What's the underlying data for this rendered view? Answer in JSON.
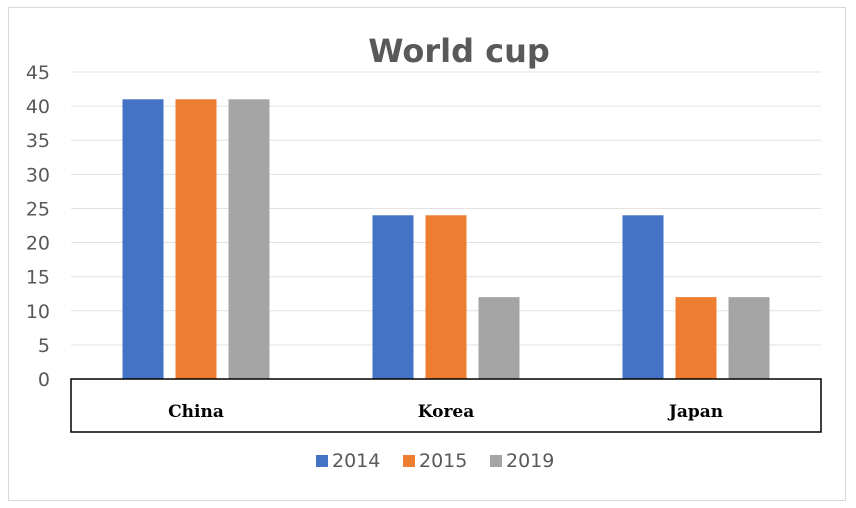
{
  "chart_data": {
    "type": "bar",
    "title": "World cup",
    "categories": [
      "China",
      "Korea",
      "Japan"
    ],
    "series": [
      {
        "name": "2014",
        "color": "#4472C4",
        "values": [
          41,
          24,
          24
        ]
      },
      {
        "name": "2015",
        "color": "#ED7D31",
        "values": [
          41,
          24,
          12
        ]
      },
      {
        "name": "2019",
        "color": "#A5A5A5",
        "values": [
          41,
          12,
          12
        ]
      }
    ],
    "yticks": [
      "0",
      "5",
      "10",
      "15",
      "20",
      "25",
      "30",
      "35",
      "40",
      "45"
    ],
    "ylim": [
      0,
      45
    ],
    "grid": true,
    "legend": "bottom"
  }
}
